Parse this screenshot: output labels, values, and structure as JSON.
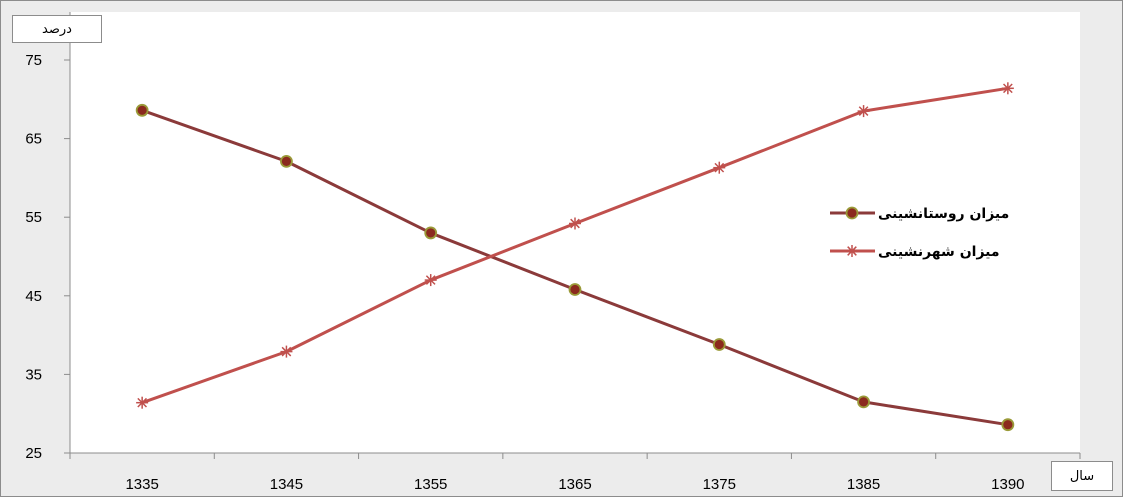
{
  "chart_data": {
    "type": "line",
    "ylabel": "درصد",
    "xlabel": "سال",
    "categories": [
      "1335",
      "1345",
      "1355",
      "1365",
      "1375",
      "1385",
      "1390"
    ],
    "ylim": [
      25,
      75
    ],
    "yticks": [
      "25",
      "35",
      "45",
      "55",
      "65",
      "75"
    ],
    "grid": false,
    "legend_position": "right",
    "series": [
      {
        "name": "میزان روستانشینی",
        "values": [
          68.6,
          62.1,
          53.0,
          45.8,
          38.8,
          31.5,
          28.6
        ],
        "marker": "circle",
        "line_color": "#8b3a3a",
        "marker_fill": "#8b2a1e",
        "marker_edge": "#9a9a38"
      },
      {
        "name": "میزان شهرنشینی",
        "values": [
          31.4,
          37.9,
          47.0,
          54.2,
          61.3,
          68.5,
          71.4
        ],
        "marker": "star",
        "line_color": "#c0504d",
        "marker_fill": "#c0504d",
        "marker_edge": "#c0504d"
      }
    ]
  }
}
